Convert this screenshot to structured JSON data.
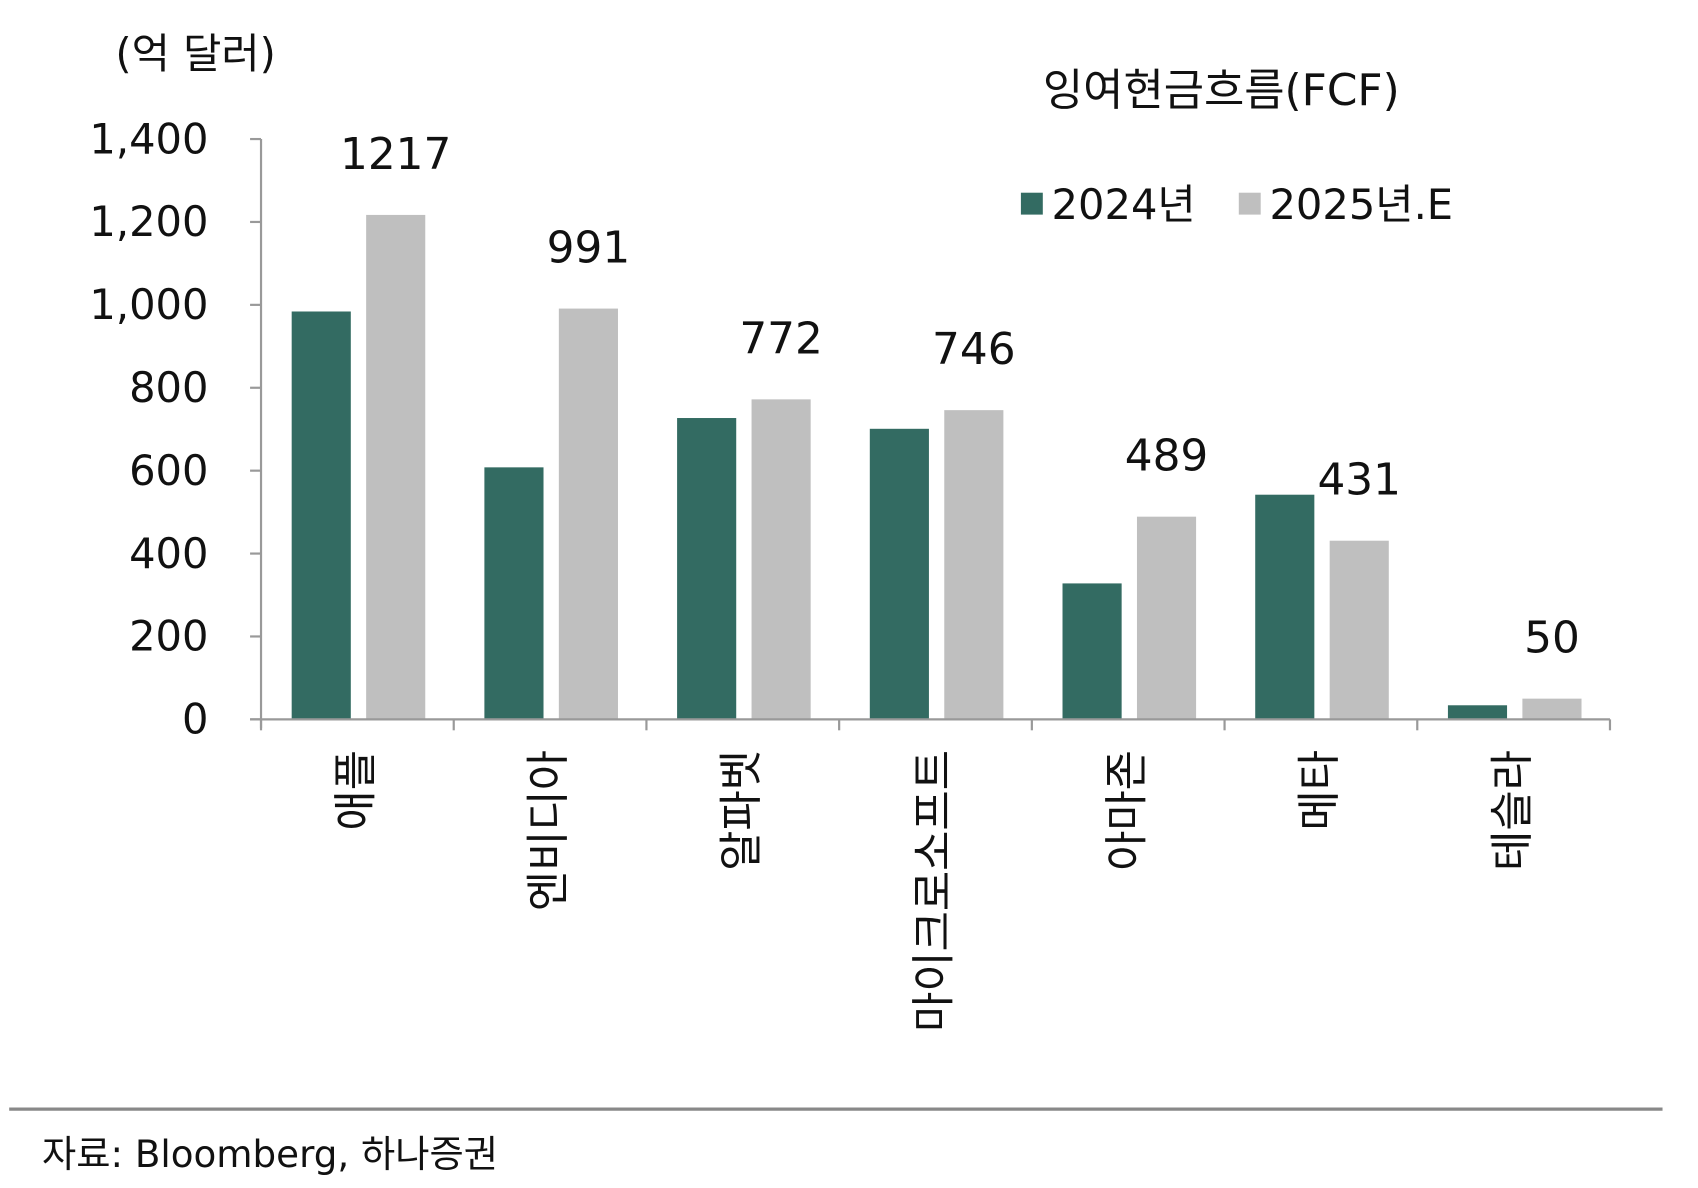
{
  "chart_data": {
    "type": "bar",
    "title": "잉여현금흐름(FCF)",
    "ylabel": "(억 달러)",
    "xlabel": "",
    "ylim": [
      0,
      1400
    ],
    "yticks": [
      0,
      200,
      400,
      600,
      800,
      1000,
      1200,
      1400
    ],
    "ytick_labels": [
      "0",
      "200",
      "400",
      "600",
      "800",
      "1,000",
      "1,200",
      "1,400"
    ],
    "categories": [
      "애플",
      "엔비디아",
      "알파벳",
      "마이크로소프트",
      "아마존",
      "메타",
      "테슬라"
    ],
    "series": [
      {
        "name": "2024년",
        "color": "#336b62",
        "values": [
          984,
          608,
          727,
          701,
          328,
          542,
          34
        ]
      },
      {
        "name": "2025년.E",
        "color": "#bfbfbf",
        "values": [
          1217,
          991,
          772,
          746,
          489,
          431,
          50
        ],
        "data_labels": [
          "1217",
          "991",
          "772",
          "746",
          "489",
          "431",
          "50"
        ]
      }
    ],
    "legend_position": "top-right",
    "grid": false
  },
  "source": "자료: Bloomberg, 하나증권"
}
